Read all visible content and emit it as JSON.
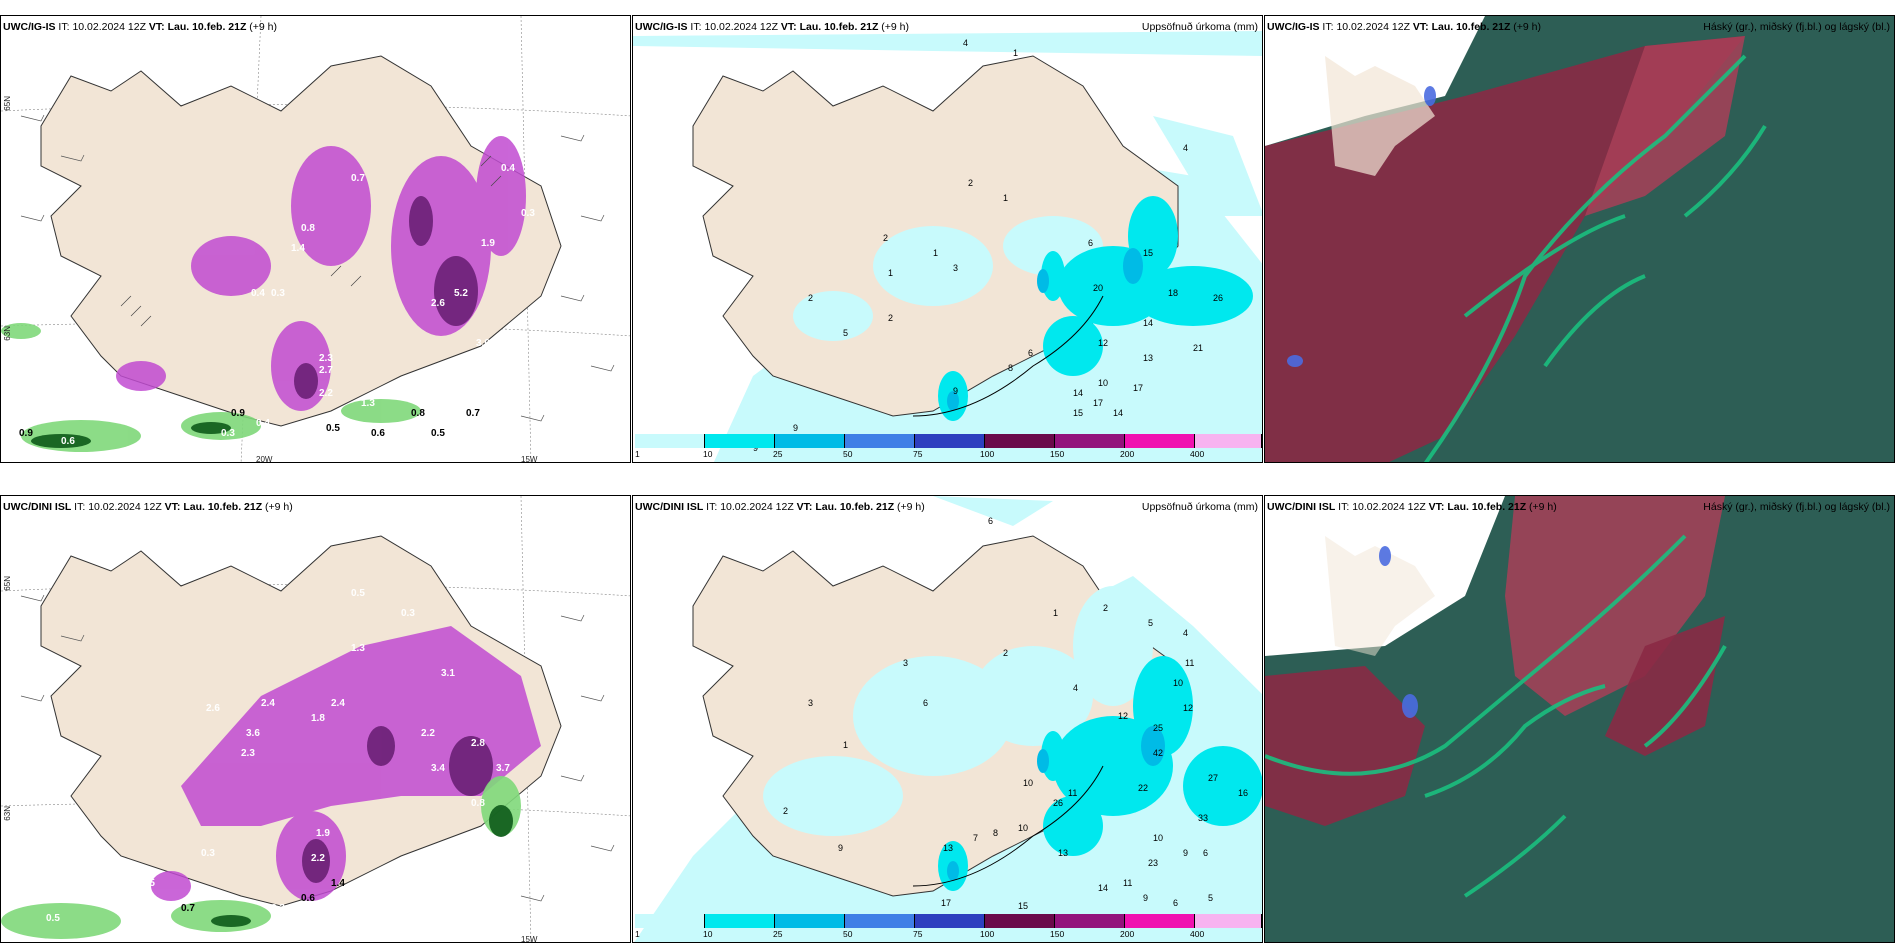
{
  "panels": {
    "top_left": {
      "model": "UWC/IG-IS",
      "it_label": "IT:",
      "it": "10.02.2024 12Z",
      "vt_label": "VT:",
      "vt": "Lau. 10.feb. 21Z",
      "lead": "(+9 h)",
      "lat_labels": [
        "65N",
        "64N",
        "63N"
      ],
      "lon_labels": [
        "20W",
        "15W"
      ],
      "values": [
        "0.7",
        "0.6",
        "0.5",
        "0.4",
        "0.3",
        "0.9",
        "1.0",
        "1.4",
        "0.8",
        "0.3",
        "1.9",
        "2.6",
        "5.2",
        "3.0",
        "2.3",
        "2.7",
        "1.3",
        "2.2",
        "0.9",
        "0.5",
        "0.6",
        "0.8",
        "0.7",
        "0.9",
        "0.6",
        "0.3",
        "0.4",
        "0.5",
        "0.4",
        "0.3"
      ]
    },
    "top_mid": {
      "model": "UWC/IG-IS",
      "it_label": "IT:",
      "it": "10.02.2024 12Z",
      "vt_label": "VT:",
      "vt": "Lau. 10.feb. 21Z",
      "lead": "(+9 h)",
      "right_title": "Uppsöfnuð úrkoma (mm)",
      "values": [
        "4",
        "1",
        "1",
        "2",
        "4",
        "5",
        "1",
        "1",
        "6",
        "15",
        "20",
        "18",
        "26",
        "21",
        "14",
        "13",
        "12",
        "10",
        "17",
        "17",
        "15",
        "14",
        "14",
        "9",
        "6",
        "8",
        "9",
        "9",
        "2",
        "1",
        "3",
        "2",
        "5",
        "2",
        "1",
        "2",
        "2"
      ]
    },
    "top_right": {
      "model": "UWC/IG-IS",
      "it_label": "IT:",
      "it": "10.02.2024 12Z",
      "vt_label": "VT:",
      "vt": "Lau. 10.feb. 21Z",
      "lead": "(+9 h)",
      "right_title": "Háský (gr.), miðský (fj.bl.) og lágský (bl.)"
    },
    "bottom_left": {
      "model": "UWC/DINI ISL",
      "it_label": "IT:",
      "it": "10.02.2024 12Z",
      "vt_label": "VT:",
      "vt": "Lau. 10.feb. 21Z",
      "lead": "(+9 h)",
      "lat_labels": [
        "65N",
        "64N",
        "63N"
      ],
      "lon_labels": [
        "15W"
      ],
      "values": [
        "0.4",
        "0.4",
        "0.5",
        "0.3",
        "2.6",
        "2.4",
        "3.6",
        "2.3",
        "1.8",
        "2.4",
        "1.3",
        "3.1",
        "2.2",
        "2.8",
        "3.4",
        "1.9",
        "2.2",
        "3.7",
        "0.8",
        "1.5",
        "0.7",
        "2.3",
        "1.4",
        "0.6",
        "0.3",
        "0.5",
        "0.9",
        "1.4",
        "1.0",
        "0.8"
      ]
    },
    "bottom_mid": {
      "model": "UWC/DINI ISL",
      "it_label": "IT:",
      "it": "10.02.2024 12Z",
      "vt_label": "VT:",
      "vt": "Lau. 10.feb. 21Z",
      "lead": "(+9 h)",
      "right_title": "Uppsöfnuð úrkoma (mm)",
      "values": [
        "6",
        "1",
        "2",
        "5",
        "4",
        "11",
        "10",
        "12",
        "13",
        "13",
        "25",
        "42",
        "27",
        "16",
        "22",
        "33",
        "10",
        "23",
        "9",
        "6",
        "13",
        "11",
        "14",
        "9",
        "6",
        "5",
        "15",
        "17",
        "15",
        "9",
        "7",
        "8",
        "2",
        "3",
        "6",
        "1",
        "2",
        "5",
        "3",
        "12",
        "10",
        "26",
        "11",
        "2",
        "3",
        "4"
      ]
    },
    "bottom_right": {
      "model": "UWC/DINI ISL",
      "it_label": "IT:",
      "it": "10.02.2024 12Z",
      "vt_label": "VT:",
      "vt": "Lau. 10.feb. 21Z",
      "lead": "(+9 h)",
      "right_title": "Háský (gr.), miðský (fj.bl.) og lágský (bl.)"
    }
  },
  "precip_scale": {
    "ticks": [
      "1",
      "10",
      "25",
      "50",
      "75",
      "100",
      "150",
      "200",
      "400"
    ],
    "colors": [
      "#c8fafc",
      "#00e8ee",
      "#00bbe6",
      "#3f7fe6",
      "#2d3fbf",
      "#6a0a4a",
      "#93137c",
      "#f011b0",
      "#f7b3f0"
    ]
  },
  "colors": {
    "land": "#f2e5d6",
    "precip_light": "#c8fafc",
    "precip_cyan": "#00e8ee",
    "snow_magenta": "#c14bd1",
    "snow_dark": "#6a2075",
    "rain_green": "#7fd87a",
    "rain_dark": "#0d5a1a",
    "cloud_dark": "#2d5e55",
    "cloud_red": "#8a2a45",
    "cloud_green": "#1bbf7f"
  }
}
